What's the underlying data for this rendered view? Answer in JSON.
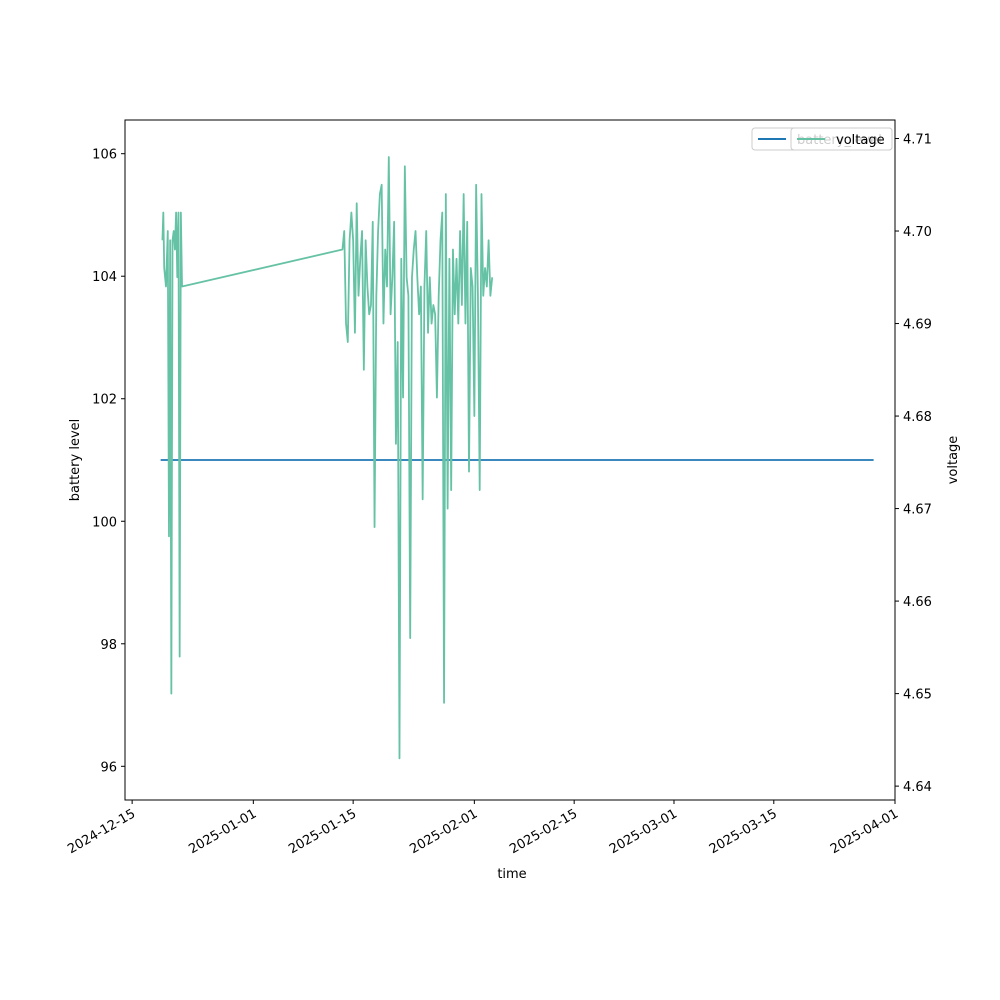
{
  "chart_data": {
    "type": "line",
    "xlabel": "time",
    "ylabel_left": "battery level",
    "ylabel_right": "voltage",
    "x_ticks": [
      "2024-12-15",
      "2025-01-01",
      "2025-01-15",
      "2025-02-01",
      "2025-02-15",
      "2025-03-01",
      "2025-03-15",
      "2025-04-01"
    ],
    "y_left_ticks": [
      96,
      98,
      100,
      102,
      104,
      106
    ],
    "y_right_ticks": [
      4.64,
      4.65,
      4.66,
      4.67,
      4.68,
      4.69,
      4.7,
      4.71
    ],
    "y_left_range": [
      95.45,
      106.55
    ],
    "y_right_range": [
      4.6385,
      4.712
    ],
    "x_range": [
      "2024-12-14",
      "2025-04-01"
    ],
    "legend": [
      {
        "name": "battery_level",
        "color": "#1f77b4"
      },
      {
        "name": "voltage",
        "color": "#66c2a5"
      }
    ],
    "series": [
      {
        "name": "battery_level",
        "axis": "left",
        "color": "#1f77b4",
        "points": [
          [
            "2024-12-19",
            101
          ],
          [
            "2025-03-29",
            101
          ]
        ]
      },
      {
        "name": "voltage",
        "axis": "right",
        "color": "#66c2a5",
        "points": [
          [
            "2024-12-19 06:00",
            4.699
          ],
          [
            "2024-12-19 09:00",
            4.702
          ],
          [
            "2024-12-19 12:00",
            4.696
          ],
          [
            "2024-12-19 18:00",
            4.694
          ],
          [
            "2024-12-20 00:00",
            4.7
          ],
          [
            "2024-12-20 04:00",
            4.667
          ],
          [
            "2024-12-20 08:00",
            4.699
          ],
          [
            "2024-12-20 12:00",
            4.65
          ],
          [
            "2024-12-20 16:00",
            4.699
          ],
          [
            "2024-12-20 20:00",
            4.7
          ],
          [
            "2024-12-21 00:00",
            4.698
          ],
          [
            "2024-12-21 04:00",
            4.702
          ],
          [
            "2024-12-21 08:00",
            4.695
          ],
          [
            "2024-12-21 12:00",
            4.702
          ],
          [
            "2024-12-21 16:00",
            4.654
          ],
          [
            "2024-12-21 20:00",
            4.702
          ],
          [
            "2024-12-22 00:00",
            4.694
          ],
          [
            "2025-01-13 12:00",
            4.698
          ],
          [
            "2025-01-13 18:00",
            4.7
          ],
          [
            "2025-01-14 00:00",
            4.69
          ],
          [
            "2025-01-14 06:00",
            4.688
          ],
          [
            "2025-01-14 12:00",
            4.699
          ],
          [
            "2025-01-14 18:00",
            4.702
          ],
          [
            "2025-01-15 00:00",
            4.699
          ],
          [
            "2025-01-15 06:00",
            4.689
          ],
          [
            "2025-01-15 12:00",
            4.703
          ],
          [
            "2025-01-15 18:00",
            4.693
          ],
          [
            "2025-01-16 00:00",
            4.697
          ],
          [
            "2025-01-16 06:00",
            4.7
          ],
          [
            "2025-01-16 12:00",
            4.685
          ],
          [
            "2025-01-16 18:00",
            4.699
          ],
          [
            "2025-01-17 00:00",
            4.694
          ],
          [
            "2025-01-17 06:00",
            4.691
          ],
          [
            "2025-01-17 12:00",
            4.692
          ],
          [
            "2025-01-17 18:00",
            4.701
          ],
          [
            "2025-01-18 00:00",
            4.668
          ],
          [
            "2025-01-18 06:00",
            4.693
          ],
          [
            "2025-01-18 12:00",
            4.7
          ],
          [
            "2025-01-18 18:00",
            4.704
          ],
          [
            "2025-01-19 00:00",
            4.705
          ],
          [
            "2025-01-19 06:00",
            4.69
          ],
          [
            "2025-01-19 12:00",
            4.698
          ],
          [
            "2025-01-19 18:00",
            4.694
          ],
          [
            "2025-01-20 00:00",
            4.708
          ],
          [
            "2025-01-20 06:00",
            4.691
          ],
          [
            "2025-01-20 12:00",
            4.695
          ],
          [
            "2025-01-20 18:00",
            4.701
          ],
          [
            "2025-01-21 00:00",
            4.677
          ],
          [
            "2025-01-21 06:00",
            4.688
          ],
          [
            "2025-01-21 12:00",
            4.643
          ],
          [
            "2025-01-21 18:00",
            4.697
          ],
          [
            "2025-01-22 00:00",
            4.682
          ],
          [
            "2025-01-22 06:00",
            4.707
          ],
          [
            "2025-01-22 12:00",
            4.695
          ],
          [
            "2025-01-22 18:00",
            4.693
          ],
          [
            "2025-01-23 00:00",
            4.656
          ],
          [
            "2025-01-23 06:00",
            4.695
          ],
          [
            "2025-01-23 12:00",
            4.698
          ],
          [
            "2025-01-23 18:00",
            4.7
          ],
          [
            "2025-01-24 00:00",
            4.695
          ],
          [
            "2025-01-24 06:00",
            4.691
          ],
          [
            "2025-01-24 12:00",
            4.694
          ],
          [
            "2025-01-24 18:00",
            4.671
          ],
          [
            "2025-01-25 00:00",
            4.694
          ],
          [
            "2025-01-25 06:00",
            4.7
          ],
          [
            "2025-01-25 12:00",
            4.689
          ],
          [
            "2025-01-25 18:00",
            4.695
          ],
          [
            "2025-01-26 00:00",
            4.69
          ],
          [
            "2025-01-26 06:00",
            4.692
          ],
          [
            "2025-01-26 12:00",
            4.691
          ],
          [
            "2025-01-26 18:00",
            4.682
          ],
          [
            "2025-01-27 00:00",
            4.693
          ],
          [
            "2025-01-27 06:00",
            4.699
          ],
          [
            "2025-01-27 12:00",
            4.702
          ],
          [
            "2025-01-27 18:00",
            4.649
          ],
          [
            "2025-01-28 00:00",
            4.704
          ],
          [
            "2025-01-28 06:00",
            4.67
          ],
          [
            "2025-01-28 12:00",
            4.697
          ],
          [
            "2025-01-28 18:00",
            4.672
          ],
          [
            "2025-01-29 00:00",
            4.698
          ],
          [
            "2025-01-29 06:00",
            4.691
          ],
          [
            "2025-01-29 12:00",
            4.697
          ],
          [
            "2025-01-29 18:00",
            4.69
          ],
          [
            "2025-01-30 00:00",
            4.7
          ],
          [
            "2025-01-30 06:00",
            4.692
          ],
          [
            "2025-01-30 12:00",
            4.704
          ],
          [
            "2025-01-30 18:00",
            4.69
          ],
          [
            "2025-01-31 00:00",
            4.701
          ],
          [
            "2025-01-31 06:00",
            4.674
          ],
          [
            "2025-01-31 12:00",
            4.696
          ],
          [
            "2025-01-31 18:00",
            4.694
          ],
          [
            "2025-02-01 00:00",
            4.68
          ],
          [
            "2025-02-01 06:00",
            4.705
          ],
          [
            "2025-02-01 12:00",
            4.693
          ],
          [
            "2025-02-01 18:00",
            4.672
          ],
          [
            "2025-02-02 00:00",
            4.704
          ],
          [
            "2025-02-02 06:00",
            4.693
          ],
          [
            "2025-02-02 12:00",
            4.696
          ],
          [
            "2025-02-02 18:00",
            4.694
          ],
          [
            "2025-02-03 00:00",
            4.699
          ],
          [
            "2025-02-03 06:00",
            4.693
          ],
          [
            "2025-02-03 12:00",
            4.695
          ]
        ]
      }
    ]
  }
}
